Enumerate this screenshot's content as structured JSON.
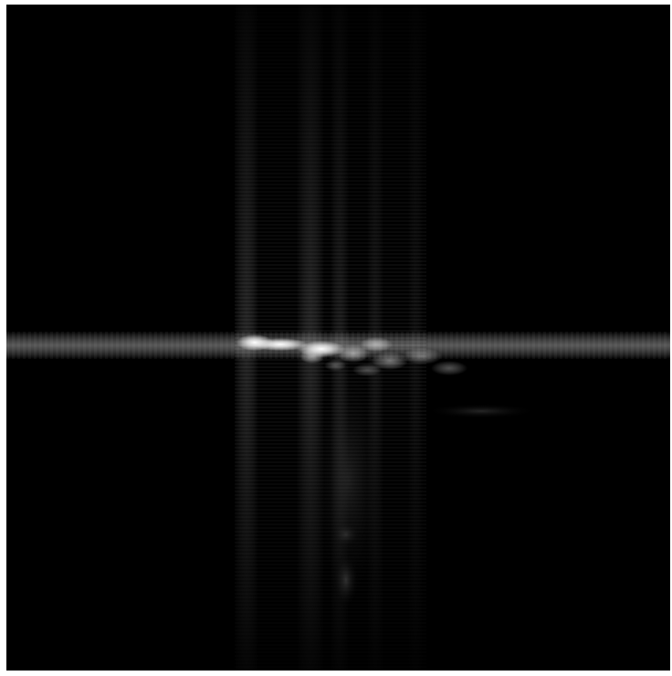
{
  "image": {
    "kind": "grayscale-intensity-map",
    "colors": {
      "background": "#000000",
      "frame": "#ffffff",
      "peak": "#ffffff",
      "glow": "#d9d9d9"
    }
  }
}
